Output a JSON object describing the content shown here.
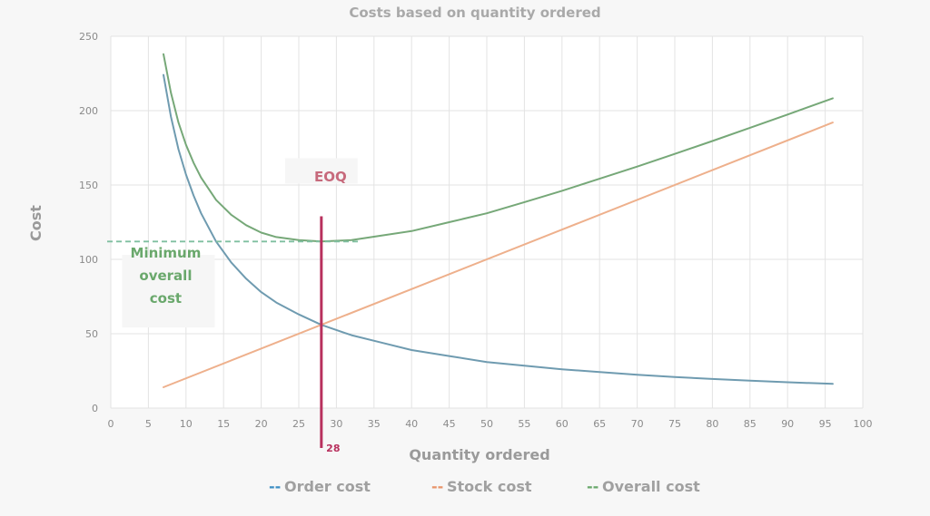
{
  "chart_data": {
    "type": "line",
    "title": "Costs based on quantity ordered",
    "xlabel": "Quantity ordered",
    "ylabel": "Cost",
    "xlim": [
      0,
      100
    ],
    "ylim": [
      0,
      250
    ],
    "x_ticks": [
      0,
      5,
      10,
      15,
      20,
      25,
      30,
      35,
      40,
      45,
      50,
      55,
      60,
      65,
      70,
      75,
      80,
      85,
      90,
      95,
      100
    ],
    "y_ticks": [
      0,
      50,
      100,
      150,
      200,
      250
    ],
    "grid": true,
    "legend_position": "bottom",
    "series": [
      {
        "name": "Order cost",
        "color": "#6f9bb0",
        "x": [
          7,
          8,
          9,
          10,
          11,
          12,
          14,
          16,
          18,
          20,
          22,
          25,
          28,
          32,
          36,
          40,
          45,
          50,
          55,
          60,
          65,
          70,
          75,
          80,
          85,
          90,
          96
        ],
        "values": [
          224,
          196,
          174,
          157,
          143,
          131,
          112,
          98,
          87,
          78,
          71,
          63,
          56,
          49,
          44,
          39,
          35,
          31,
          28.5,
          26.1,
          24.2,
          22.4,
          20.9,
          19.6,
          18.5,
          17.4,
          16.3
        ]
      },
      {
        "name": "Stock cost",
        "color": "#eeb08c",
        "x": [
          7,
          96
        ],
        "values": [
          14,
          192
        ]
      },
      {
        "name": "Overall cost",
        "color": "#76a878",
        "x": [
          7,
          8,
          9,
          10,
          11,
          12,
          14,
          16,
          18,
          20,
          22,
          25,
          28,
          32,
          36,
          40,
          45,
          50,
          55,
          60,
          65,
          70,
          75,
          80,
          85,
          90,
          96
        ],
        "values": [
          238,
          212,
          192,
          177,
          165,
          155,
          140,
          130,
          123,
          118,
          115,
          113,
          112,
          113,
          116,
          119,
          125,
          131,
          138.5,
          146.1,
          154.2,
          162.4,
          170.9,
          179.6,
          188.5,
          197.4,
          208.3
        ]
      }
    ],
    "annotations": {
      "eoq_label": "EOQ",
      "eoq_x": 28,
      "eoq_line_top_y": 129,
      "eoq_value_label": "28",
      "min_cost_y": 112,
      "min_cost_label_lines": [
        "Minimum",
        "overall",
        "cost"
      ]
    },
    "legend_markers": [
      "--",
      "--",
      "--"
    ]
  },
  "colors": {
    "background": "#f7f7f7",
    "plot_background": "#ffffff",
    "grid": "#e3e3e3",
    "eoq_line": "#b8315e",
    "min_line": "#7fbfa0"
  }
}
